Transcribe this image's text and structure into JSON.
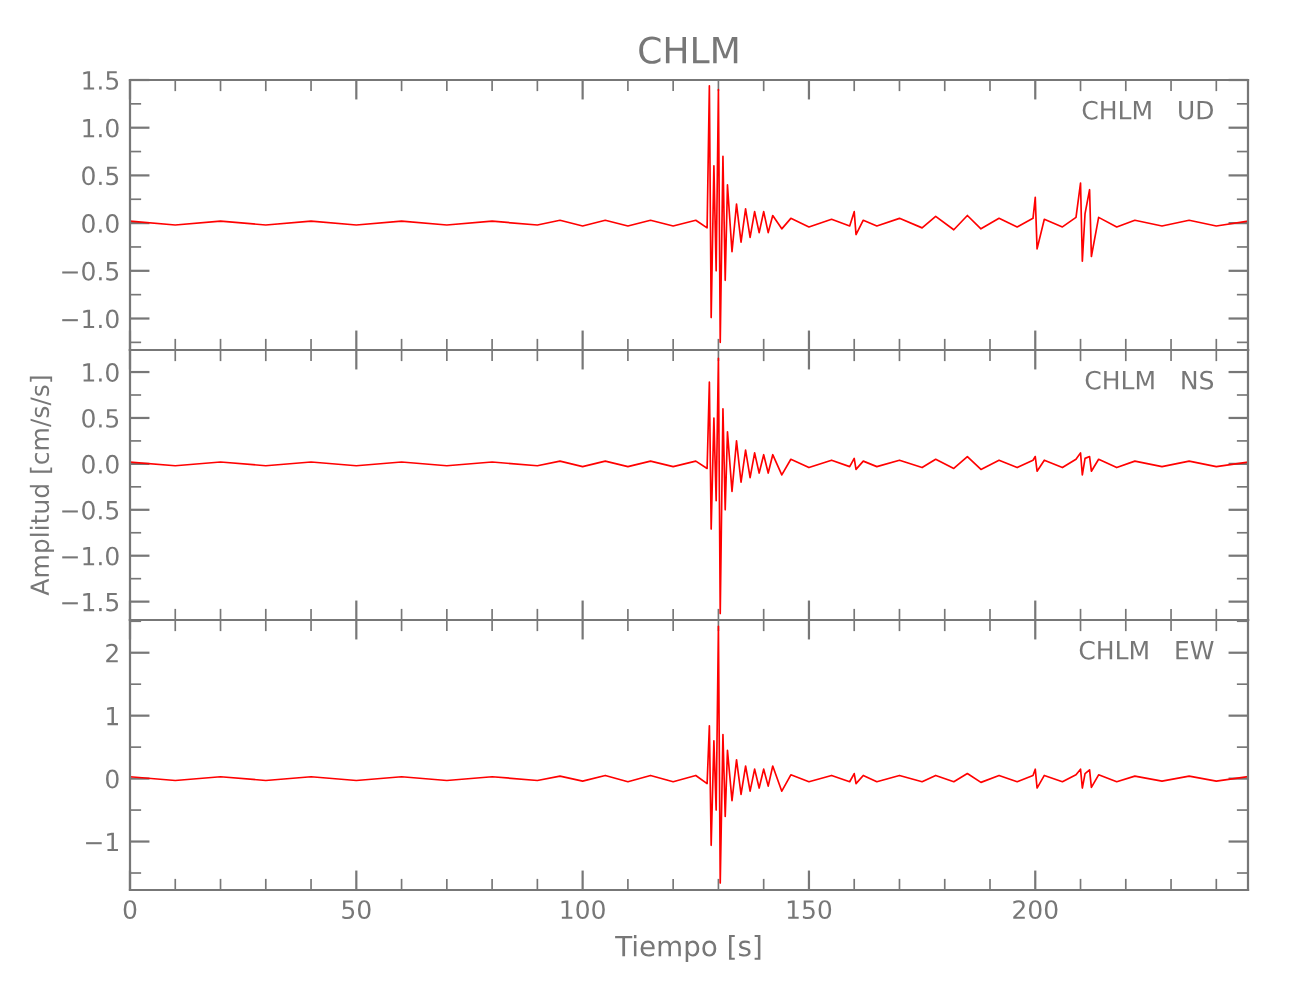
{
  "chart_data": [
    {
      "type": "line",
      "title": "CHLM",
      "annotations": [
        "CHLM   UD"
      ],
      "xlim": [
        0,
        247
      ],
      "xticks": [
        0,
        50,
        100,
        150,
        200
      ],
      "ylim": [
        -1.33,
        1.5
      ],
      "yticks": [
        {
          "value": 1.5,
          "label": "1.5"
        },
        {
          "value": 1.0,
          "label": "1.0"
        },
        {
          "value": 0.5,
          "label": "0.5"
        },
        {
          "value": 0.0,
          "label": "0.0"
        },
        {
          "value": -0.5,
          "label": "−0.5"
        },
        {
          "value": -1.0,
          "label": "−1.0"
        }
      ],
      "tick_labels": "y",
      "grid": false,
      "marker": "none",
      "line_style": "solid",
      "series": [
        {
          "color": "#ff0000",
          "x": [
            0,
            10,
            20,
            30,
            40,
            50,
            60,
            70,
            80,
            90,
            95,
            100,
            105,
            110,
            115,
            120,
            125,
            127.5,
            128,
            128.4,
            129,
            129.5,
            130,
            130.4,
            131,
            131.5,
            132,
            133,
            134,
            135,
            136,
            137,
            138,
            139,
            140,
            141,
            142,
            144,
            146,
            150,
            155,
            159,
            160,
            160.4,
            162,
            165,
            170,
            175,
            178,
            182,
            185,
            188,
            192,
            196,
            199.5,
            200,
            200.4,
            202,
            206,
            209,
            210,
            210.4,
            211,
            212,
            212.4,
            214,
            218,
            222,
            228,
            234,
            240,
            247
          ],
          "values": [
            0.02,
            -0.02,
            0.02,
            -0.02,
            0.02,
            -0.02,
            0.02,
            -0.02,
            0.02,
            -0.02,
            0.03,
            -0.03,
            0.03,
            -0.03,
            0.03,
            -0.03,
            0.03,
            -0.05,
            1.44,
            -0.99,
            0.6,
            -0.5,
            1.4,
            -1.25,
            0.7,
            -0.6,
            0.4,
            -0.3,
            0.2,
            -0.2,
            0.15,
            -0.15,
            0.12,
            -0.1,
            0.12,
            -0.1,
            0.08,
            -0.06,
            0.05,
            -0.04,
            0.04,
            -0.03,
            0.12,
            -0.12,
            0.03,
            -0.03,
            0.05,
            -0.05,
            0.07,
            -0.07,
            0.08,
            -0.06,
            0.05,
            -0.04,
            0.05,
            0.27,
            -0.27,
            0.04,
            -0.04,
            0.06,
            0.42,
            -0.4,
            0.1,
            0.35,
            -0.35,
            0.06,
            -0.04,
            0.03,
            -0.03,
            0.03,
            -0.03,
            0.02
          ]
        }
      ]
    },
    {
      "type": "line",
      "ylabel": "Amplitud [cm/s/s]",
      "annotations": [
        "CHLM   NS"
      ],
      "xlim": [
        0,
        247
      ],
      "xticks": [
        0,
        50,
        100,
        150,
        200
      ],
      "ylim": [
        -1.7,
        1.24
      ],
      "yticks": [
        {
          "value": 1.0,
          "label": "1.0"
        },
        {
          "value": 0.5,
          "label": "0.5"
        },
        {
          "value": 0.0,
          "label": "0.0"
        },
        {
          "value": -0.5,
          "label": "−0.5"
        },
        {
          "value": -1.0,
          "label": "−1.0"
        },
        {
          "value": -1.5,
          "label": "−1.5"
        }
      ],
      "tick_labels": "y",
      "grid": false,
      "marker": "none",
      "line_style": "solid",
      "series": [
        {
          "color": "#ff0000",
          "x": [
            0,
            10,
            20,
            30,
            40,
            50,
            60,
            70,
            80,
            90,
            95,
            100,
            105,
            110,
            115,
            120,
            125,
            127.5,
            128,
            128.4,
            129,
            129.5,
            130,
            130.4,
            131,
            131.5,
            132,
            133,
            134,
            135,
            136,
            137,
            138,
            139,
            140,
            141,
            142,
            144,
            146,
            150,
            155,
            159,
            160,
            160.4,
            162,
            165,
            170,
            175,
            178,
            182,
            185,
            188,
            192,
            196,
            199.5,
            200,
            200.4,
            202,
            206,
            209,
            210,
            210.4,
            211,
            212,
            212.4,
            214,
            218,
            222,
            228,
            234,
            240,
            247
          ],
          "values": [
            0.02,
            -0.02,
            0.02,
            -0.02,
            0.02,
            -0.02,
            0.02,
            -0.02,
            0.02,
            -0.02,
            0.03,
            -0.03,
            0.03,
            -0.03,
            0.03,
            -0.03,
            0.03,
            -0.05,
            0.89,
            -0.71,
            0.5,
            -0.4,
            1.15,
            -1.63,
            0.6,
            -0.5,
            0.35,
            -0.3,
            0.25,
            -0.2,
            0.15,
            -0.15,
            0.12,
            -0.1,
            0.1,
            -0.1,
            0.1,
            -0.12,
            0.05,
            -0.04,
            0.04,
            -0.03,
            0.06,
            -0.06,
            0.03,
            -0.03,
            0.04,
            -0.04,
            0.05,
            -0.05,
            0.08,
            -0.06,
            0.04,
            -0.04,
            0.04,
            0.08,
            -0.08,
            0.04,
            -0.04,
            0.05,
            0.12,
            -0.12,
            0.06,
            0.08,
            -0.08,
            0.05,
            -0.04,
            0.03,
            -0.03,
            0.03,
            -0.03,
            0.02
          ]
        }
      ]
    },
    {
      "type": "line",
      "xlabel": "Tiempo [s]",
      "annotations": [
        "CHLM   EW"
      ],
      "xlim": [
        0,
        247
      ],
      "xticks": [
        0,
        50,
        100,
        150,
        200
      ],
      "ylim": [
        -1.77,
        2.52
      ],
      "yticks": [
        {
          "value": 2,
          "label": "2"
        },
        {
          "value": 1,
          "label": "1"
        },
        {
          "value": 0,
          "label": "0"
        },
        {
          "value": -1,
          "label": "−1"
        }
      ],
      "grid": false,
      "marker": "none",
      "line_style": "solid",
      "series": [
        {
          "color": "#ff0000",
          "x": [
            0,
            10,
            20,
            30,
            40,
            50,
            60,
            70,
            80,
            90,
            95,
            100,
            105,
            110,
            115,
            120,
            125,
            127.5,
            128,
            128.4,
            129,
            129.5,
            130,
            130.4,
            131,
            131.5,
            132,
            133,
            134,
            135,
            136,
            137,
            138,
            139,
            140,
            141,
            142,
            144,
            146,
            150,
            155,
            159,
            160,
            160.4,
            162,
            165,
            170,
            175,
            178,
            182,
            185,
            188,
            192,
            196,
            199.5,
            200,
            200.4,
            202,
            206,
            209,
            210,
            210.4,
            211,
            212,
            212.4,
            214,
            218,
            222,
            228,
            234,
            240,
            247
          ],
          "values": [
            0.03,
            -0.03,
            0.03,
            -0.03,
            0.03,
            -0.03,
            0.03,
            -0.03,
            0.03,
            -0.03,
            0.04,
            -0.04,
            0.05,
            -0.05,
            0.05,
            -0.05,
            0.05,
            -0.08,
            0.84,
            -1.06,
            0.6,
            -0.5,
            2.42,
            -1.66,
            0.7,
            -0.6,
            0.45,
            -0.35,
            0.3,
            -0.25,
            0.2,
            -0.2,
            0.15,
            -0.15,
            0.15,
            -0.12,
            0.2,
            -0.2,
            0.06,
            -0.05,
            0.05,
            -0.05,
            0.08,
            -0.08,
            0.05,
            -0.05,
            0.05,
            -0.05,
            0.05,
            -0.05,
            0.08,
            -0.06,
            0.05,
            -0.05,
            0.05,
            0.15,
            -0.15,
            0.05,
            -0.05,
            0.06,
            0.15,
            -0.15,
            0.08,
            0.14,
            -0.14,
            0.06,
            -0.05,
            0.04,
            -0.04,
            0.04,
            -0.04,
            0.03
          ]
        }
      ]
    }
  ]
}
